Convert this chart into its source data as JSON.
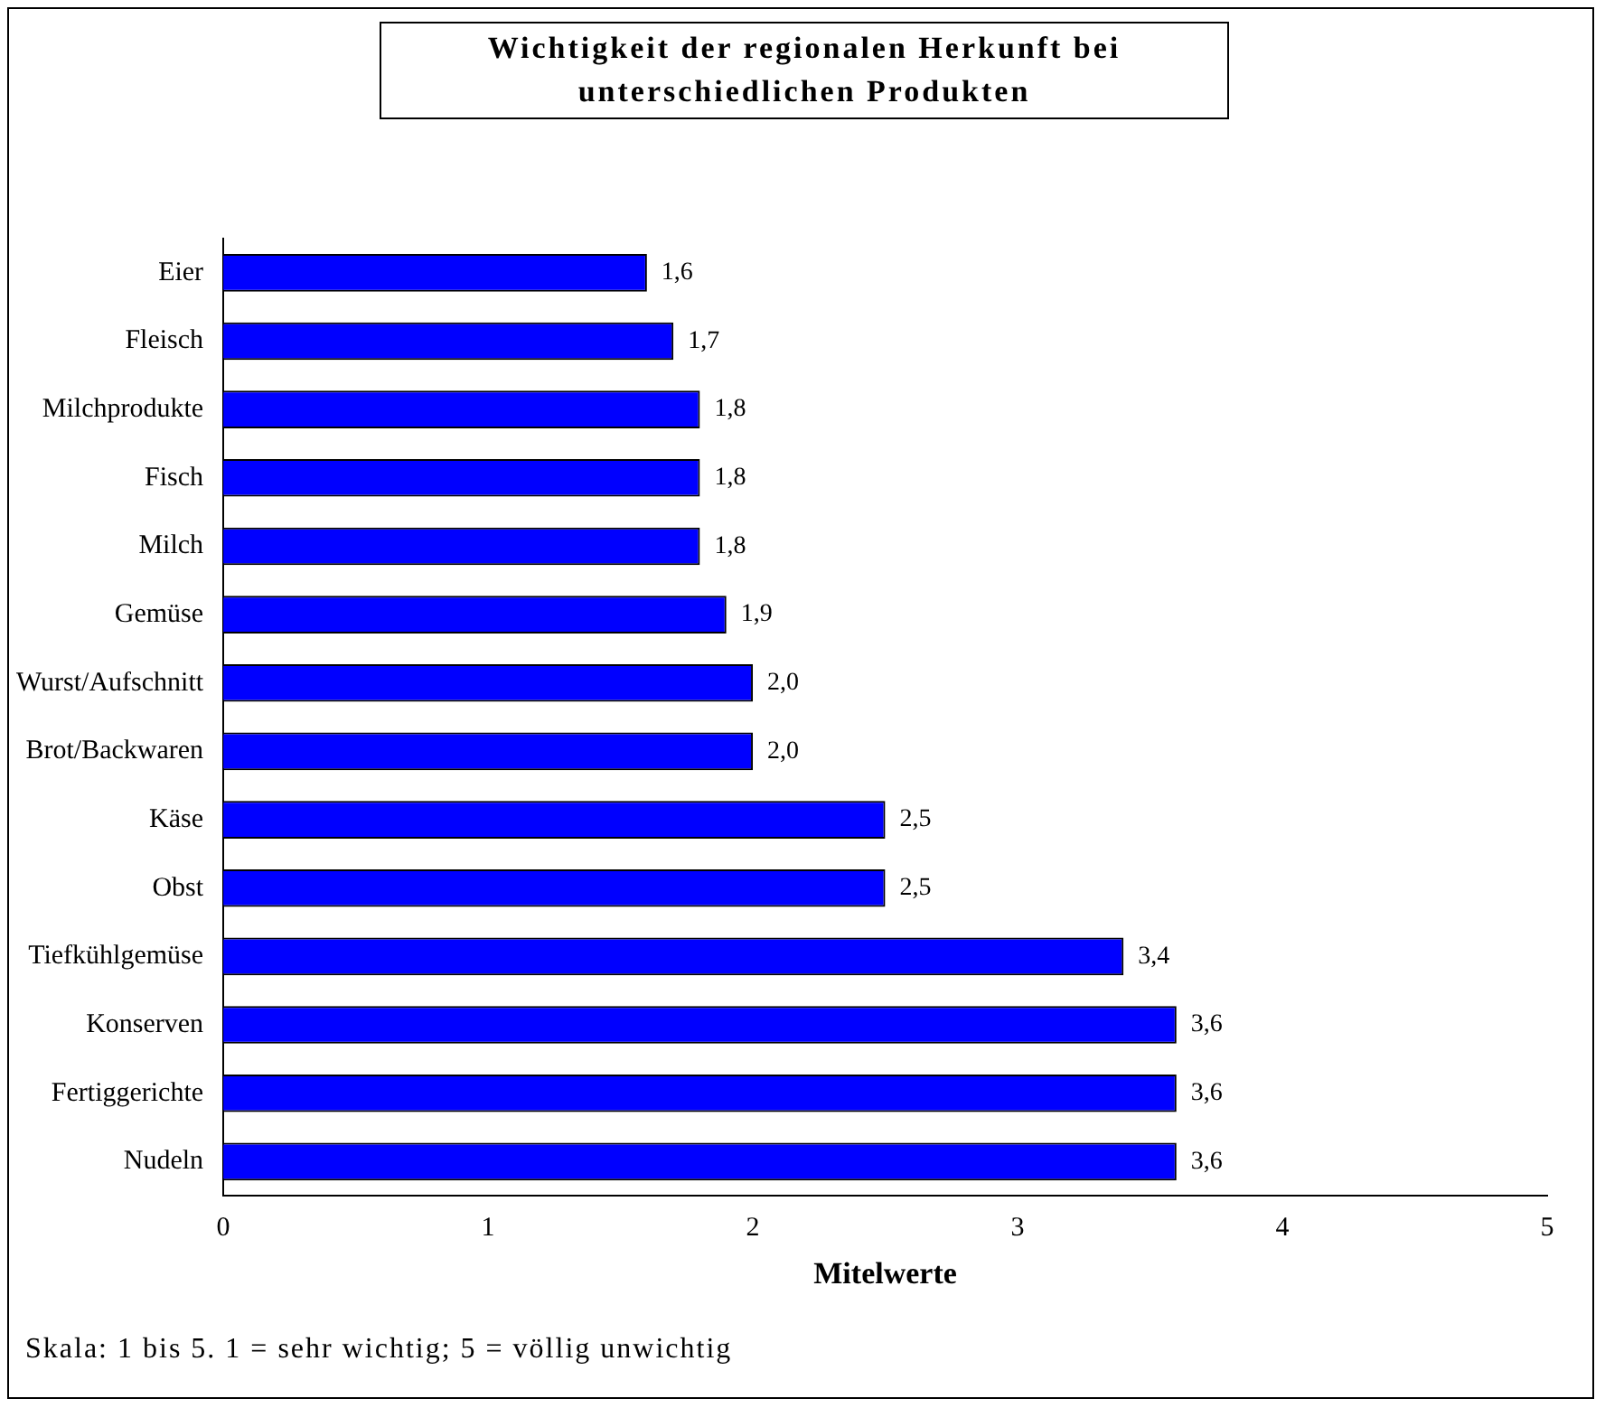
{
  "chart_data": {
    "type": "bar",
    "orientation": "horizontal",
    "title": "Wichtigkeit der regionalen Herkunft bei unterschiedlichen Produkten",
    "xlabel": "Mitelwerte",
    "categories": [
      "Eier",
      "Fleisch",
      "Milchprodukte",
      "Fisch",
      "Milch",
      "Gemüse",
      "Wurst/Aufschnitt",
      "Brot/Backwaren",
      "Käse",
      "Obst",
      "Tiefkühlgemüse",
      "Konserven",
      "Fertiggerichte",
      "Nudeln"
    ],
    "values": [
      1.6,
      1.7,
      1.8,
      1.8,
      1.8,
      1.9,
      2.0,
      2.0,
      2.5,
      2.5,
      3.4,
      3.6,
      3.6,
      3.6
    ],
    "value_labels": [
      "1,6",
      "1,7",
      "1,8",
      "1,8",
      "1,8",
      "1,9",
      "2,0",
      "2,0",
      "2,5",
      "2,5",
      "3,4",
      "3,6",
      "3,6",
      "3,6"
    ],
    "color": "#0000ff",
    "xlim": [
      0,
      5
    ],
    "xticks": [
      0,
      1,
      2,
      3,
      4,
      5
    ],
    "grid": false,
    "legend": false,
    "annotations": [
      "Skala: 1 bis 5. 1 = sehr wichtig; 5 = völlig unwichtig"
    ]
  }
}
